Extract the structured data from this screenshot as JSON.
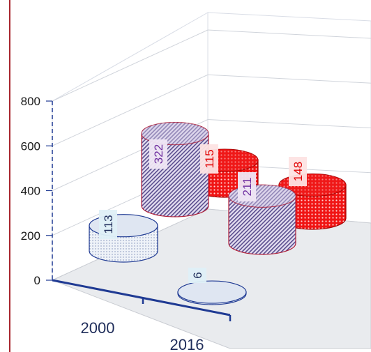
{
  "chart_data": {
    "type": "bar",
    "style": "3d-cylinder",
    "title": "",
    "xlabel": "",
    "ylabel": "",
    "ylim": [
      0,
      800
    ],
    "y_ticks": [
      "0",
      "200",
      "400",
      "600",
      "800"
    ],
    "categories": [
      "2000",
      "2016"
    ],
    "grid": true,
    "legend": "none",
    "series": [
      {
        "values": [
          113,
          6
        ],
        "color": "#dfe7f3",
        "edge": "#1f3a93",
        "pattern": "dots",
        "label_color": "#1f2d5a",
        "label_bg": "#dff0f7"
      },
      {
        "values": [
          322,
          211
        ],
        "color": "#c9bfe0",
        "edge": "#b0213a",
        "pattern": "diagonal",
        "label_color": "#7030a0",
        "label_bg": "#efe6f4"
      },
      {
        "values": [
          115,
          148
        ],
        "color": "#ee1111",
        "edge": "#a00000",
        "pattern": "dense-dots",
        "label_color": "#e00000",
        "label_bg": "#fde3e3"
      }
    ],
    "data_labels": true
  }
}
